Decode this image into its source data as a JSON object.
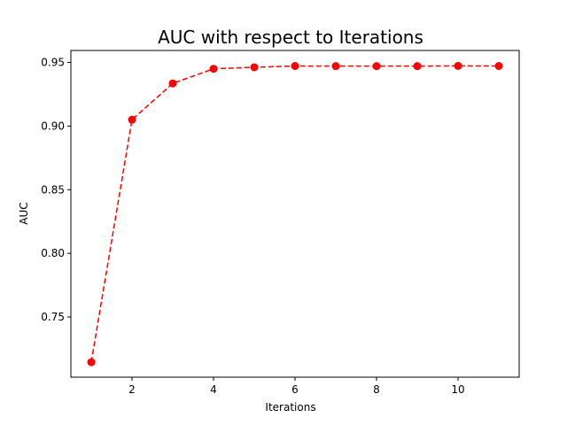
{
  "chart_data": {
    "type": "line",
    "title": "AUC with respect to Iterations",
    "xlabel": "Iterations",
    "ylabel": "AUC",
    "x": [
      1,
      2,
      3,
      4,
      5,
      6,
      7,
      8,
      9,
      10,
      11
    ],
    "series": [
      {
        "values": [
          0.7145,
          0.905,
          0.9335,
          0.945,
          0.9462,
          0.9472,
          0.9471,
          0.9471,
          0.9471,
          0.9473,
          0.9472
        ],
        "color": "#ff0000",
        "line_style": "dashed",
        "marker": "circle"
      }
    ],
    "xlim": [
      0.5,
      11.5
    ],
    "ylim": [
      0.7027,
      0.9594
    ],
    "xticks": [
      2,
      4,
      6,
      8,
      10
    ],
    "yticks": [
      0.75,
      0.8,
      0.85,
      0.9,
      0.95
    ],
    "ytick_labels": [
      "0.75",
      "0.80",
      "0.85",
      "0.90",
      "0.95"
    ],
    "grid": false,
    "legend": "none"
  }
}
